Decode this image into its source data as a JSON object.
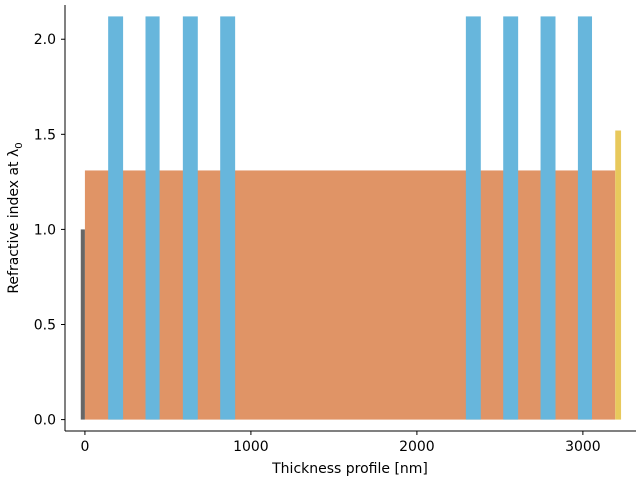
{
  "chart_data": {
    "type": "bar",
    "xlabel": "Thickness profile [nm]",
    "ylabel_text": "Refractive index at λ",
    "ylabel_subscript": "0",
    "xlim": [
      -120,
      3320
    ],
    "ylim": [
      -0.06,
      2.18
    ],
    "xticks": [
      0,
      1000,
      2000,
      3000
    ],
    "xtick_labels": [
      "0",
      "1000",
      "2000",
      "3000"
    ],
    "yticks": [
      0.0,
      0.5,
      1.0,
      1.5,
      2.0
    ],
    "ytick_labels": [
      "0.0",
      "0.5",
      "1.0",
      "1.5",
      "2.0"
    ],
    "grid": false,
    "bars": [
      {
        "layer": "incident-medium",
        "x0": -25,
        "x1": 0,
        "n": 1.0,
        "color": "#666666"
      },
      {
        "layer": "host-layer",
        "x0": 0,
        "x1": 3195,
        "n": 1.31,
        "color": "#e09466"
      },
      {
        "layer": "high-index-1",
        "x0": 140,
        "x1": 230,
        "n": 2.12,
        "color": "#67b6dc"
      },
      {
        "layer": "high-index-2",
        "x0": 365,
        "x1": 450,
        "n": 2.12,
        "color": "#67b6dc"
      },
      {
        "layer": "high-index-3",
        "x0": 590,
        "x1": 680,
        "n": 2.12,
        "color": "#67b6dc"
      },
      {
        "layer": "high-index-4",
        "x0": 815,
        "x1": 905,
        "n": 2.12,
        "color": "#67b6dc"
      },
      {
        "layer": "high-index-5",
        "x0": 2295,
        "x1": 2385,
        "n": 2.12,
        "color": "#67b6dc"
      },
      {
        "layer": "high-index-6",
        "x0": 2520,
        "x1": 2610,
        "n": 2.12,
        "color": "#67b6dc"
      },
      {
        "layer": "high-index-7",
        "x0": 2745,
        "x1": 2835,
        "n": 2.12,
        "color": "#67b6dc"
      },
      {
        "layer": "high-index-8",
        "x0": 2970,
        "x1": 3055,
        "n": 2.12,
        "color": "#67b6dc"
      },
      {
        "layer": "substrate",
        "x0": 3195,
        "x1": 3230,
        "n": 1.52,
        "color": "#e8c95c"
      }
    ]
  }
}
